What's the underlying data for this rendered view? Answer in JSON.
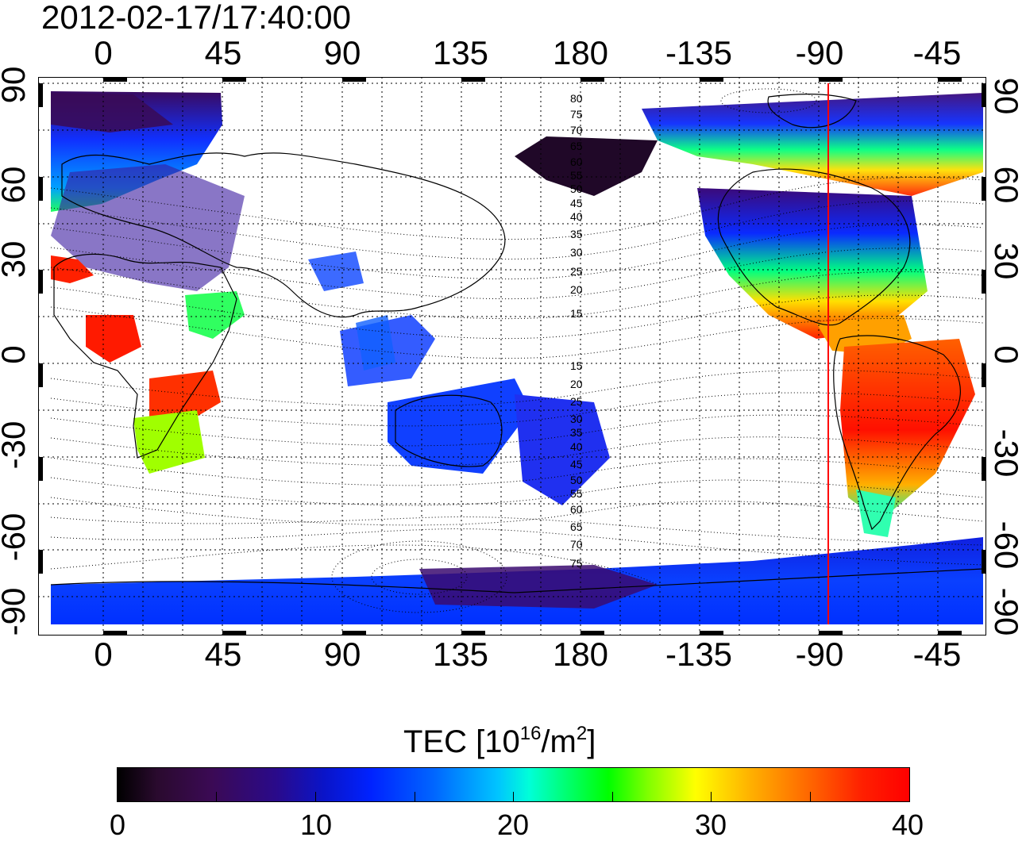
{
  "timestamp": "2012-02-17/17:40:00",
  "map": {
    "lon_labels": [
      "0",
      "45",
      "90",
      "135",
      "180",
      "-135",
      "-90",
      "-45"
    ],
    "lat_labels": [
      "90",
      "60",
      "30",
      "0",
      "-30",
      "-60",
      "-90"
    ],
    "contour_labels_north": [
      "80",
      "75",
      "70",
      "65",
      "60",
      "55",
      "50",
      "45",
      "40",
      "35",
      "30",
      "25",
      "20",
      "15"
    ],
    "contour_labels_south": [
      "15",
      "20",
      "25",
      "30",
      "35",
      "40",
      "45",
      "50",
      "55",
      "60",
      "65",
      "70",
      "75"
    ],
    "marker_longitude": -84,
    "marker_color": "#ff0000"
  },
  "colorbar": {
    "title": "TEC  [10",
    "exp1": "16",
    "title_mid": "/m",
    "exp2": "2",
    "title_end": "]",
    "min": 0,
    "max": 40,
    "tick_labels": [
      "0",
      "10",
      "20",
      "30",
      "40"
    ],
    "colors": [
      "#000000",
      "#3b0a55",
      "#0022ff",
      "#00c4ff",
      "#00ff00",
      "#ffff00",
      "#ff6000",
      "#ff0000"
    ]
  }
}
